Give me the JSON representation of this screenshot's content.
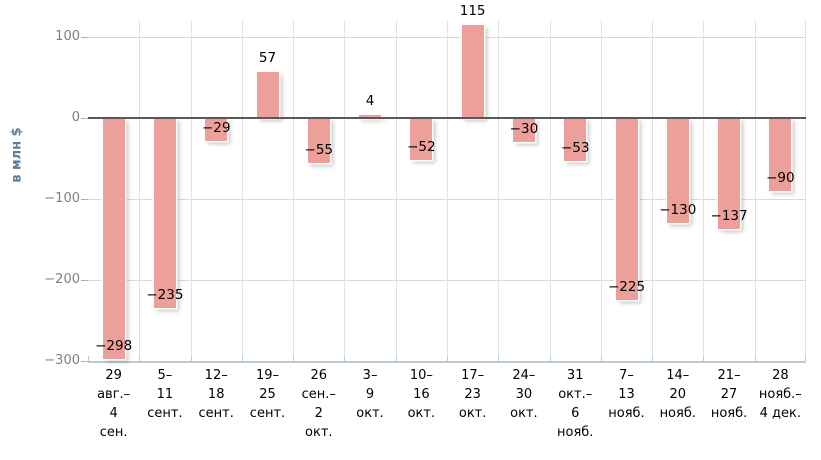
{
  "chart_data": {
    "type": "bar",
    "title": "",
    "xlabel": "",
    "ylabel": "в млн $",
    "categories": [
      "29 авг.–4 сен.",
      "5–11 сент.",
      "12–18 сент.",
      "19–25 сент.",
      "26 сен.–2 окт.",
      "3–9 окт.",
      "10–16 окт.",
      "17–23 окт.",
      "24–30 окт.",
      "31 окт.–6 нояб.",
      "7–13 нояб.",
      "14–20 нояб.",
      "21–27 нояб.",
      "28 нояб.–4 дек."
    ],
    "category_lines": [
      [
        "29",
        "авг.–",
        "4",
        "сен."
      ],
      [
        "5–",
        "11",
        "сент."
      ],
      [
        "12–",
        "18",
        "сент."
      ],
      [
        "19–",
        "25",
        "сент."
      ],
      [
        "26",
        "сен.–",
        "2",
        "окт."
      ],
      [
        "3–",
        "9",
        "окт."
      ],
      [
        "10–",
        "16",
        "окт."
      ],
      [
        "17–",
        "23",
        "окт."
      ],
      [
        "24–",
        "30",
        "окт."
      ],
      [
        "31",
        "окт.–",
        "6",
        "нояб."
      ],
      [
        "7–",
        "13",
        "нояб."
      ],
      [
        "14–",
        "20",
        "нояб."
      ],
      [
        "21–",
        "27",
        "нояб."
      ],
      [
        "28",
        "нояб.–",
        "4 дек."
      ]
    ],
    "values": [
      -298,
      -235,
      -29,
      57,
      -55,
      4,
      -52,
      115,
      -30,
      -53,
      -225,
      -130,
      -137,
      -90
    ],
    "yticks": [
      100,
      0,
      -100,
      -200,
      -300
    ],
    "ylim": [
      -310,
      125
    ],
    "grid": true,
    "legend": false,
    "colors": {
      "bar": "#ECA099",
      "bar_stroke": "#FFFFFF",
      "bar_shadow": "rgba(125,125,125,0.45)",
      "zero_line": "#58585A",
      "h_grid": "#D9D9D9",
      "v_grid": "#DCE3EA",
      "axis_line": "#B9C9D5",
      "y_tick_text": "#7F7F7F",
      "x_tick_text": "#000000",
      "value_label_text": "#000000",
      "ylabel_text": "#5C7E99"
    }
  }
}
